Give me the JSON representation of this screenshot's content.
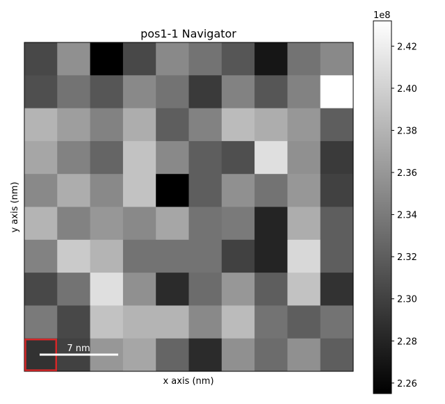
{
  "chart_data": {
    "type": "heatmap",
    "title": "pos1-1 Navigator",
    "xlabel": "x axis (nm)",
    "ylabel": "y axis (nm)",
    "colormap": "gray",
    "vmin": 225500000,
    "vmax": 243200000,
    "colorbar": {
      "offset_label": "1e8",
      "ticks": [
        2.26,
        2.28,
        2.3,
        2.32,
        2.34,
        2.36,
        2.38,
        2.4,
        2.42
      ],
      "tick_labels": [
        "2.26",
        "2.28",
        "2.30",
        "2.32",
        "2.34",
        "2.36",
        "2.38",
        "2.40",
        "2.42"
      ]
    },
    "scalebar_label": "7 nm",
    "highlight_cell": {
      "row": 9,
      "col": 0,
      "color": "#d62728"
    },
    "rows": 10,
    "cols": 10,
    "values": [
      [
        230500000,
        235500000,
        225500000,
        230500000,
        235000000,
        233500000,
        231500000,
        227000000,
        233500000,
        235000000
      ],
      [
        231000000,
        233500000,
        231500000,
        235000000,
        233500000,
        229500000,
        234500000,
        231500000,
        234500000,
        243200000
      ],
      [
        238000000,
        236500000,
        234500000,
        237500000,
        232000000,
        234500000,
        238500000,
        237500000,
        236000000,
        232000000
      ],
      [
        237000000,
        234500000,
        232500000,
        239000000,
        235000000,
        232000000,
        231000000,
        241000000,
        235500000,
        229500000
      ],
      [
        235000000,
        237500000,
        235000000,
        239000000,
        225500000,
        232000000,
        235500000,
        233500000,
        236000000,
        230000000
      ],
      [
        238000000,
        234500000,
        236000000,
        235000000,
        237000000,
        233500000,
        234000000,
        228000000,
        237500000,
        232000000
      ],
      [
        234500000,
        239500000,
        238000000,
        233500000,
        233500000,
        233500000,
        230000000,
        228000000,
        240500000,
        232000000
      ],
      [
        230500000,
        233500000,
        241000000,
        235500000,
        228500000,
        233000000,
        236000000,
        232000000,
        239000000,
        229000000
      ],
      [
        234000000,
        230500000,
        239000000,
        238000000,
        238000000,
        235000000,
        238500000,
        233500000,
        232000000,
        233500000
      ],
      [
        229000000,
        230000000,
        236000000,
        237000000,
        232500000,
        228500000,
        235500000,
        233000000,
        235500000,
        232000000
      ]
    ]
  }
}
